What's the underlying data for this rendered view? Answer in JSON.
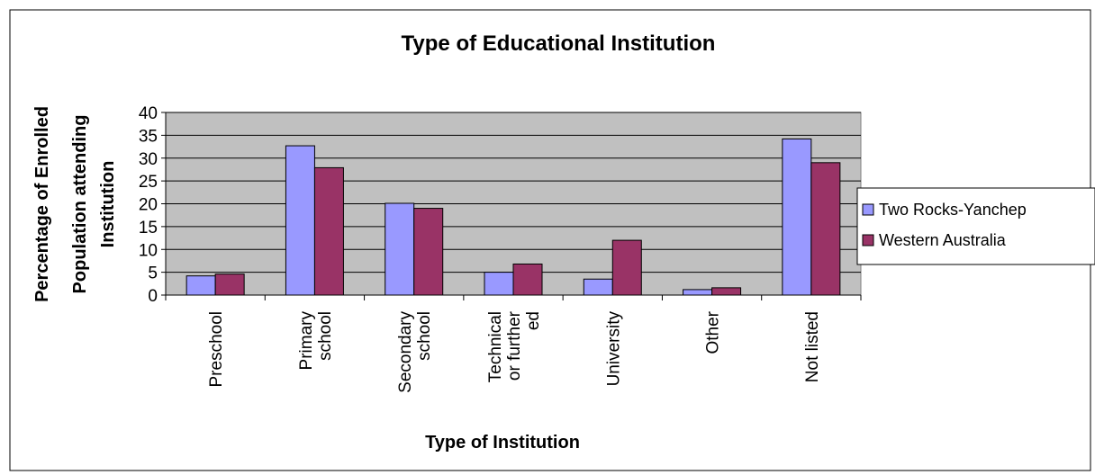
{
  "chart_data": {
    "type": "bar",
    "title": "Type of Educational Institution",
    "xlabel": "Type of Institution",
    "ylabel": "Percentage of Enrolled Population attending Institution",
    "ylim": [
      0,
      40
    ],
    "yticks": [
      0,
      5,
      10,
      15,
      20,
      25,
      30,
      35,
      40
    ],
    "grid": true,
    "legend_position": "right",
    "categories": [
      "Preschool",
      "Primary school",
      "Secondary school",
      "Technical or further ed",
      "University",
      "Other",
      "Not listed"
    ],
    "category_lines": [
      [
        "Preschool"
      ],
      [
        "Primary",
        "school"
      ],
      [
        "Secondary",
        "school"
      ],
      [
        "Technical",
        "or further",
        "ed"
      ],
      [
        "University"
      ],
      [
        "Other"
      ],
      [
        "Not listed"
      ]
    ],
    "ylabel_lines": [
      "Percentage of Enrolled",
      "Population attending",
      "Institution"
    ],
    "series": [
      {
        "name": "Two Rocks-Yanchep",
        "color": "#9999ff",
        "values": [
          4.2,
          32.7,
          20.1,
          5.0,
          3.5,
          1.2,
          34.2
        ]
      },
      {
        "name": "Western Australia",
        "color": "#993366",
        "values": [
          4.6,
          27.9,
          19.0,
          6.8,
          12.0,
          1.6,
          29.0
        ]
      }
    ],
    "plot_background": "#c0c0c0"
  }
}
